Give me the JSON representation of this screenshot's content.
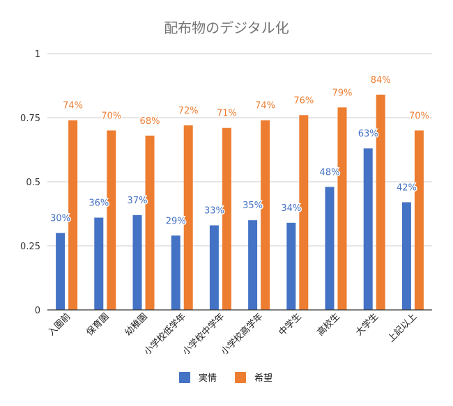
{
  "chart_data": {
    "type": "bar",
    "title": "配布物のデジタル化",
    "categories": [
      "入園前",
      "保育園",
      "幼稚園",
      "小学校低学年",
      "小学校中学年",
      "小学校高学年",
      "中学生",
      "高校生",
      "大学生",
      "上記以上"
    ],
    "series": [
      {
        "name": "実情",
        "color": "#4472c4",
        "values": [
          0.3,
          0.36,
          0.37,
          0.29,
          0.33,
          0.35,
          0.34,
          0.48,
          0.63,
          0.42
        ],
        "labels": [
          "30%",
          "36%",
          "37%",
          "29%",
          "33%",
          "35%",
          "34%",
          "48%",
          "63%",
          "42%"
        ]
      },
      {
        "name": "希望",
        "color": "#ed7d31",
        "values": [
          0.74,
          0.7,
          0.68,
          0.72,
          0.71,
          0.74,
          0.76,
          0.79,
          0.84,
          0.7
        ],
        "labels": [
          "74%",
          "70%",
          "68%",
          "72%",
          "71%",
          "74%",
          "76%",
          "79%",
          "84%",
          "70%"
        ]
      }
    ],
    "ylim": [
      0,
      1
    ],
    "yticks": [
      0,
      0.25,
      0.5,
      0.75,
      1
    ],
    "ytick_labels": [
      "0",
      "0.25",
      "0.5",
      "0.75",
      "1"
    ],
    "grid": true,
    "legend_position": "bottom"
  }
}
